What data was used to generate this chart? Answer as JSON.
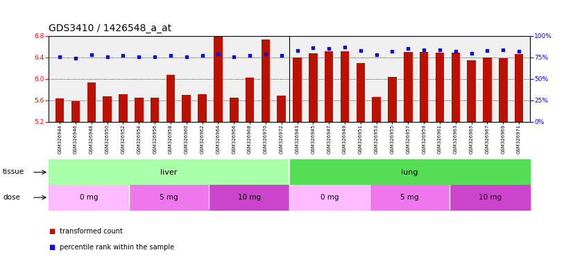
{
  "title": "GDS3410 / 1426548_a_at",
  "samples": [
    "GSM326944",
    "GSM326946",
    "GSM326948",
    "GSM326950",
    "GSM326952",
    "GSM326954",
    "GSM326956",
    "GSM326958",
    "GSM326960",
    "GSM326962",
    "GSM326964",
    "GSM326966",
    "GSM326968",
    "GSM326970",
    "GSM326972",
    "GSM326943",
    "GSM326945",
    "GSM326947",
    "GSM326949",
    "GSM326951",
    "GSM326953",
    "GSM326955",
    "GSM326957",
    "GSM326959",
    "GSM326961",
    "GSM326963",
    "GSM326965",
    "GSM326967",
    "GSM326969",
    "GSM326971"
  ],
  "transformed_count": [
    5.63,
    5.58,
    5.93,
    5.67,
    5.71,
    5.65,
    5.65,
    6.07,
    5.7,
    5.71,
    6.87,
    5.65,
    6.02,
    6.73,
    5.69,
    6.4,
    6.47,
    6.51,
    6.52,
    6.3,
    5.66,
    6.03,
    6.5,
    6.5,
    6.49,
    6.49,
    6.35,
    6.4,
    6.39,
    6.46
  ],
  "percentile_rank": [
    76,
    74,
    78,
    76,
    77,
    76,
    76,
    77,
    76,
    77,
    79,
    76,
    77,
    79,
    77,
    83,
    86,
    85,
    87,
    83,
    78,
    82,
    85,
    84,
    84,
    82,
    80,
    83,
    84,
    82
  ],
  "ylim_left": [
    5.2,
    6.8
  ],
  "ylim_right": [
    0,
    100
  ],
  "yticks_left": [
    5.2,
    5.6,
    6.0,
    6.4,
    6.8
  ],
  "yticks_right": [
    0,
    25,
    50,
    75,
    100
  ],
  "bar_color": "#bb1100",
  "dot_color": "#1111cc",
  "tissue_groups": [
    {
      "label": "liver",
      "start": 0,
      "end": 14,
      "color": "#aaffaa"
    },
    {
      "label": "lung",
      "start": 15,
      "end": 29,
      "color": "#55dd55"
    }
  ],
  "dose_groups": [
    {
      "label": "0 mg",
      "start": 0,
      "end": 4,
      "color": "#ffbbff"
    },
    {
      "label": "5 mg",
      "start": 5,
      "end": 9,
      "color": "#ee77ee"
    },
    {
      "label": "10 mg",
      "start": 10,
      "end": 14,
      "color": "#cc44cc"
    },
    {
      "label": "0 mg",
      "start": 15,
      "end": 19,
      "color": "#ffbbff"
    },
    {
      "label": "5 mg",
      "start": 20,
      "end": 24,
      "color": "#ee77ee"
    },
    {
      "label": "10 mg",
      "start": 25,
      "end": 29,
      "color": "#cc44cc"
    }
  ],
  "legend_items": [
    {
      "label": "transformed count",
      "color": "#bb1100"
    },
    {
      "label": "percentile rank within the sample",
      "color": "#1111cc"
    }
  ],
  "background_color": "#f0f0f0",
  "title_fontsize": 10,
  "tick_fontsize": 6.5,
  "label_fontsize": 8
}
